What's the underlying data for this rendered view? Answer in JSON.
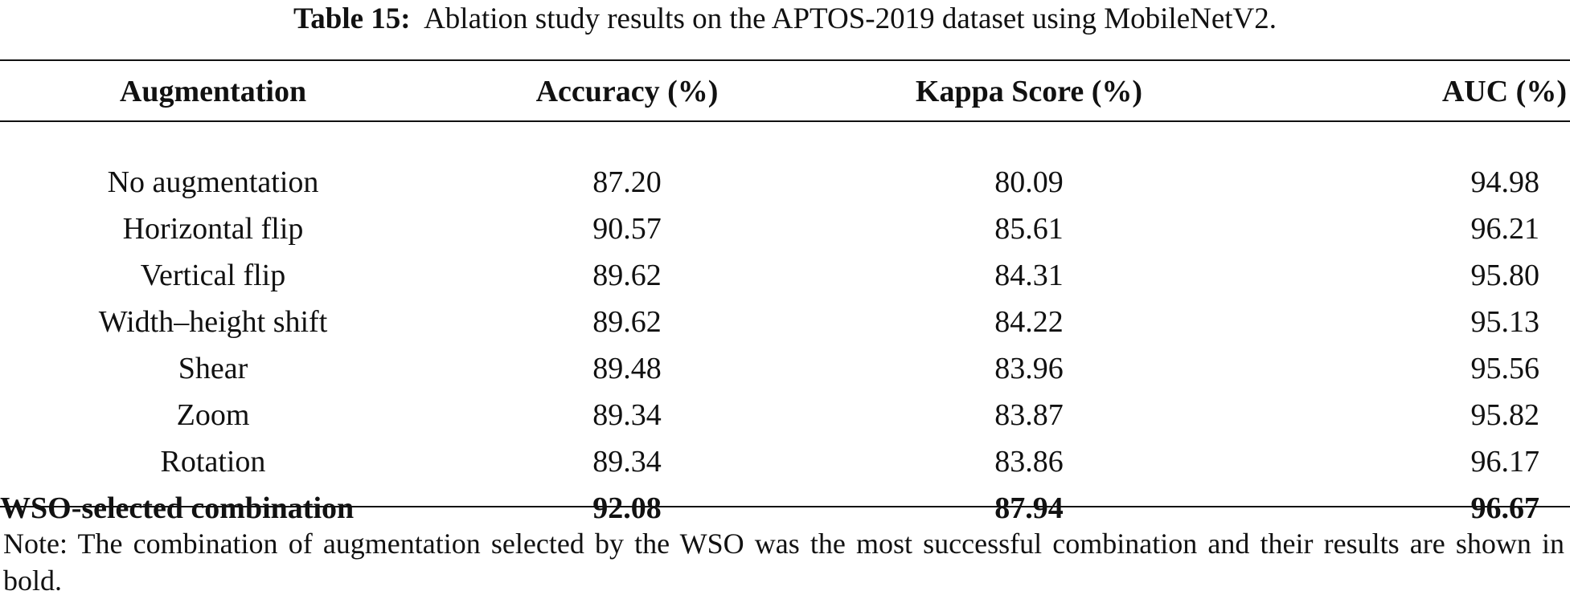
{
  "caption": {
    "label": "Table 15:",
    "text": "Ablation study results on the APTOS-2019 dataset using MobileNetV2."
  },
  "table": {
    "headers": [
      "Augmentation",
      "Accuracy (%)",
      "Kappa Score (%)",
      "AUC (%)"
    ],
    "rows": [
      {
        "augmentation": "No augmentation",
        "accuracy": "87.20",
        "kappa": "80.09",
        "auc": "94.98"
      },
      {
        "augmentation": "Horizontal flip",
        "accuracy": "90.57",
        "kappa": "85.61",
        "auc": "96.21"
      },
      {
        "augmentation": "Vertical flip",
        "accuracy": "89.62",
        "kappa": "84.31",
        "auc": "95.80"
      },
      {
        "augmentation": "Width–height shift",
        "accuracy": "89.62",
        "kappa": "84.22",
        "auc": "95.13"
      },
      {
        "augmentation": "Shear",
        "accuracy": "89.48",
        "kappa": "83.96",
        "auc": "95.56"
      },
      {
        "augmentation": "Zoom",
        "accuracy": "89.34",
        "kappa": "83.87",
        "auc": "95.82"
      },
      {
        "augmentation": "Rotation",
        "accuracy": "89.34",
        "kappa": "83.86",
        "auc": "96.17"
      },
      {
        "augmentation": "WSO-selected combination",
        "accuracy": "92.08",
        "kappa": "87.94",
        "auc": "96.67"
      }
    ]
  },
  "note": "Note: The combination of augmentation selected by the WSO was the most successful combination and their results are shown in bold."
}
